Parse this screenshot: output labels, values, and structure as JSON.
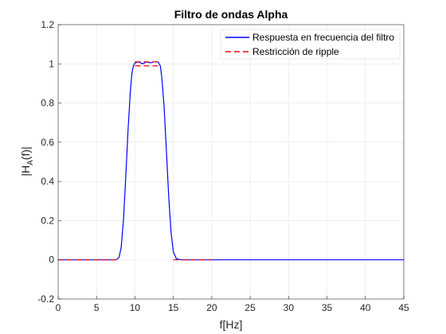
{
  "chart_data": {
    "type": "line",
    "title": "Filtro de ondas Alpha",
    "xlabel": "f[Hz]",
    "ylabel_main": "|H",
    "ylabel_sub": "A",
    "ylabel_tail": "(f)|",
    "xlim": [
      0,
      45
    ],
    "ylim": [
      -0.2,
      1.2
    ],
    "xticks": [
      0,
      5,
      10,
      15,
      20,
      25,
      30,
      35,
      40,
      45
    ],
    "xtick_labels": [
      "0",
      "5",
      "10",
      "15",
      "20",
      "25",
      "30",
      "35",
      "40",
      "45"
    ],
    "yticks": [
      -0.2,
      0,
      0.2,
      0.4,
      0.6,
      0.8,
      1,
      1.2
    ],
    "ytick_labels": [
      "-0.2",
      "0",
      "0.2",
      "0.4",
      "0.6",
      "0.8",
      "1",
      "1.2"
    ],
    "grid": true,
    "legend_position": "top-right",
    "series": [
      {
        "name": "Respuesta en frecuencia del filtro",
        "color": "#0000ff",
        "style": "solid",
        "x": [
          0,
          7.5,
          7.9,
          8.2,
          8.5,
          8.8,
          9.1,
          9.4,
          9.6,
          9.8,
          10.0,
          10.5,
          11.0,
          11.5,
          12.0,
          12.5,
          13.0,
          13.3,
          13.5,
          13.8,
          14.1,
          14.4,
          14.7,
          15.0,
          15.4,
          16,
          45
        ],
        "y": [
          0,
          0,
          0.01,
          0.06,
          0.2,
          0.42,
          0.66,
          0.86,
          0.95,
          0.99,
          1.005,
          1.01,
          1.0,
          1.01,
          1.005,
          1.01,
          1.01,
          0.99,
          0.93,
          0.78,
          0.55,
          0.32,
          0.14,
          0.04,
          0.005,
          0,
          0
        ]
      },
      {
        "name": "Restricción de ripple",
        "color": "#ff0000",
        "style": "dashed",
        "segments": [
          {
            "x": [
              0,
              8
            ],
            "y": [
              0,
              0
            ]
          },
          {
            "x": [
              10,
              13
            ],
            "y": [
              1.01,
              1.01
            ]
          },
          {
            "x": [
              10,
              13
            ],
            "y": [
              0.99,
              0.99
            ]
          },
          {
            "x": [
              15,
              20
            ],
            "y": [
              0,
              0
            ]
          }
        ]
      }
    ]
  }
}
